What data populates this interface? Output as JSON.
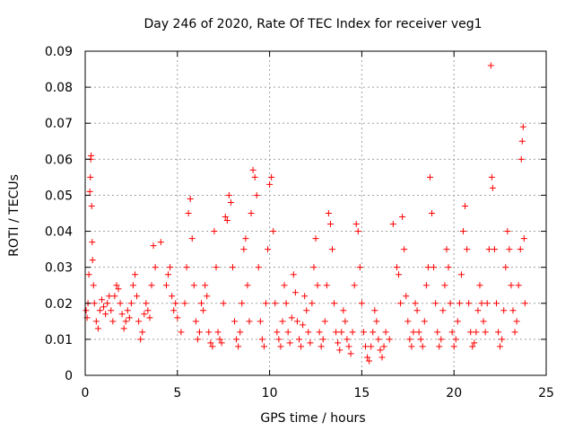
{
  "chart_data": {
    "type": "scatter",
    "title": "Day 246 of 2020, Rate Of TEC Index for receiver veg1",
    "xlabel": "GPS time / hours",
    "ylabel": "ROTI / TECUs",
    "xlim": [
      0,
      25
    ],
    "ylim": [
      0,
      0.09
    ],
    "xticks": [
      0,
      5,
      10,
      15,
      20,
      25
    ],
    "xtick_labels": [
      "0",
      "5",
      "10",
      "15",
      "20",
      "25"
    ],
    "yticks": [
      0,
      0.01,
      0.02,
      0.03,
      0.04,
      0.05,
      0.06,
      0.07,
      0.08,
      0.09
    ],
    "ytick_labels": [
      "0",
      "0.01",
      "0.02",
      "0.03",
      "0.04",
      "0.05",
      "0.06",
      "0.07",
      "0.08",
      "0.09"
    ],
    "grid": true,
    "marker": "+",
    "color": "#ff0000",
    "series": [
      {
        "name": "ROTI",
        "points": [
          [
            0.05,
            0.018
          ],
          [
            0.1,
            0.016
          ],
          [
            0.15,
            0.02
          ],
          [
            0.2,
            0.028
          ],
          [
            0.25,
            0.051
          ],
          [
            0.28,
            0.055
          ],
          [
            0.3,
            0.06
          ],
          [
            0.32,
            0.061
          ],
          [
            0.35,
            0.047
          ],
          [
            0.38,
            0.037
          ],
          [
            0.4,
            0.032
          ],
          [
            0.45,
            0.025
          ],
          [
            0.5,
            0.02
          ],
          [
            0.6,
            0.015
          ],
          [
            0.7,
            0.013
          ],
          [
            0.8,
            0.018
          ],
          [
            0.9,
            0.021
          ],
          [
            1.0,
            0.019
          ],
          [
            1.1,
            0.017
          ],
          [
            1.2,
            0.02
          ],
          [
            1.3,
            0.022
          ],
          [
            1.4,
            0.018
          ],
          [
            1.5,
            0.015
          ],
          [
            1.6,
            0.022
          ],
          [
            1.7,
            0.025
          ],
          [
            1.8,
            0.024
          ],
          [
            1.9,
            0.02
          ],
          [
            2.0,
            0.017
          ],
          [
            2.1,
            0.013
          ],
          [
            2.2,
            0.015
          ],
          [
            2.3,
            0.018
          ],
          [
            2.4,
            0.016
          ],
          [
            2.5,
            0.02
          ],
          [
            2.6,
            0.025
          ],
          [
            2.7,
            0.028
          ],
          [
            2.8,
            0.022
          ],
          [
            2.9,
            0.015
          ],
          [
            3.0,
            0.01
          ],
          [
            3.1,
            0.012
          ],
          [
            3.2,
            0.017
          ],
          [
            3.3,
            0.02
          ],
          [
            3.4,
            0.018
          ],
          [
            3.5,
            0.016
          ],
          [
            3.6,
            0.025
          ],
          [
            3.7,
            0.036
          ],
          [
            3.8,
            0.03
          ],
          [
            4.1,
            0.037
          ],
          [
            4.4,
            0.025
          ],
          [
            4.5,
            0.028
          ],
          [
            4.6,
            0.03
          ],
          [
            4.7,
            0.022
          ],
          [
            4.8,
            0.018
          ],
          [
            4.9,
            0.02
          ],
          [
            5.0,
            0.016
          ],
          [
            5.2,
            0.012
          ],
          [
            5.4,
            0.02
          ],
          [
            5.5,
            0.03
          ],
          [
            5.6,
            0.045
          ],
          [
            5.7,
            0.049
          ],
          [
            5.8,
            0.038
          ],
          [
            5.9,
            0.025
          ],
          [
            6.0,
            0.015
          ],
          [
            6.1,
            0.01
          ],
          [
            6.2,
            0.012
          ],
          [
            6.3,
            0.02
          ],
          [
            6.4,
            0.018
          ],
          [
            6.5,
            0.025
          ],
          [
            6.6,
            0.022
          ],
          [
            6.7,
            0.012
          ],
          [
            6.8,
            0.009
          ],
          [
            6.9,
            0.008
          ],
          [
            7.0,
            0.04
          ],
          [
            7.1,
            0.03
          ],
          [
            7.2,
            0.012
          ],
          [
            7.3,
            0.01
          ],
          [
            7.4,
            0.009
          ],
          [
            7.5,
            0.02
          ],
          [
            7.6,
            0.044
          ],
          [
            7.7,
            0.043
          ],
          [
            7.8,
            0.05
          ],
          [
            7.9,
            0.048
          ],
          [
            8.0,
            0.03
          ],
          [
            8.1,
            0.015
          ],
          [
            8.2,
            0.01
          ],
          [
            8.3,
            0.008
          ],
          [
            8.4,
            0.012
          ],
          [
            8.5,
            0.02
          ],
          [
            8.6,
            0.035
          ],
          [
            8.7,
            0.038
          ],
          [
            8.8,
            0.025
          ],
          [
            8.9,
            0.015
          ],
          [
            9.0,
            0.045
          ],
          [
            9.1,
            0.057
          ],
          [
            9.2,
            0.055
          ],
          [
            9.3,
            0.05
          ],
          [
            9.4,
            0.03
          ],
          [
            9.5,
            0.015
          ],
          [
            9.6,
            0.01
          ],
          [
            9.7,
            0.008
          ],
          [
            9.8,
            0.02
          ],
          [
            9.9,
            0.035
          ],
          [
            10.0,
            0.053
          ],
          [
            10.1,
            0.055
          ],
          [
            10.2,
            0.04
          ],
          [
            10.3,
            0.02
          ],
          [
            10.4,
            0.012
          ],
          [
            10.5,
            0.01
          ],
          [
            10.6,
            0.008
          ],
          [
            10.7,
            0.015
          ],
          [
            10.8,
            0.025
          ],
          [
            10.9,
            0.02
          ],
          [
            11.0,
            0.012
          ],
          [
            11.1,
            0.009
          ],
          [
            11.2,
            0.016
          ],
          [
            11.3,
            0.028
          ],
          [
            11.4,
            0.023
          ],
          [
            11.5,
            0.015
          ],
          [
            11.6,
            0.01
          ],
          [
            11.7,
            0.008
          ],
          [
            11.8,
            0.014
          ],
          [
            11.9,
            0.022
          ],
          [
            12.0,
            0.018
          ],
          [
            12.1,
            0.012
          ],
          [
            12.2,
            0.009
          ],
          [
            12.3,
            0.02
          ],
          [
            12.4,
            0.03
          ],
          [
            12.5,
            0.038
          ],
          [
            12.6,
            0.025
          ],
          [
            12.7,
            0.012
          ],
          [
            12.8,
            0.008
          ],
          [
            12.9,
            0.01
          ],
          [
            13.0,
            0.015
          ],
          [
            13.1,
            0.025
          ],
          [
            13.2,
            0.045
          ],
          [
            13.3,
            0.042
          ],
          [
            13.4,
            0.035
          ],
          [
            13.5,
            0.02
          ],
          [
            13.6,
            0.012
          ],
          [
            13.7,
            0.009
          ],
          [
            13.8,
            0.007
          ],
          [
            13.9,
            0.012
          ],
          [
            14.0,
            0.018
          ],
          [
            14.1,
            0.015
          ],
          [
            14.2,
            0.01
          ],
          [
            14.3,
            0.008
          ],
          [
            14.4,
            0.006
          ],
          [
            14.5,
            0.012
          ],
          [
            14.6,
            0.025
          ],
          [
            14.7,
            0.042
          ],
          [
            14.8,
            0.04
          ],
          [
            14.9,
            0.03
          ],
          [
            15.0,
            0.02
          ],
          [
            15.1,
            0.012
          ],
          [
            15.2,
            0.008
          ],
          [
            15.3,
            0.005
          ],
          [
            15.4,
            0.004
          ],
          [
            15.5,
            0.008
          ],
          [
            15.6,
            0.012
          ],
          [
            15.7,
            0.018
          ],
          [
            15.8,
            0.015
          ],
          [
            15.9,
            0.01
          ],
          [
            16.0,
            0.007
          ],
          [
            16.1,
            0.005
          ],
          [
            16.2,
            0.008
          ],
          [
            16.3,
            0.012
          ],
          [
            16.5,
            0.01
          ],
          [
            16.7,
            0.042
          ],
          [
            16.9,
            0.03
          ],
          [
            17.0,
            0.028
          ],
          [
            17.1,
            0.02
          ],
          [
            17.2,
            0.044
          ],
          [
            17.3,
            0.035
          ],
          [
            17.4,
            0.022
          ],
          [
            17.5,
            0.015
          ],
          [
            17.6,
            0.01
          ],
          [
            17.7,
            0.008
          ],
          [
            17.8,
            0.012
          ],
          [
            17.9,
            0.02
          ],
          [
            18.0,
            0.018
          ],
          [
            18.1,
            0.012
          ],
          [
            18.2,
            0.01
          ],
          [
            18.3,
            0.008
          ],
          [
            18.4,
            0.015
          ],
          [
            18.5,
            0.025
          ],
          [
            18.6,
            0.03
          ],
          [
            18.7,
            0.055
          ],
          [
            18.8,
            0.045
          ],
          [
            18.9,
            0.03
          ],
          [
            19.0,
            0.02
          ],
          [
            19.1,
            0.012
          ],
          [
            19.2,
            0.008
          ],
          [
            19.3,
            0.01
          ],
          [
            19.4,
            0.018
          ],
          [
            19.5,
            0.025
          ],
          [
            19.6,
            0.035
          ],
          [
            19.7,
            0.03
          ],
          [
            19.8,
            0.02
          ],
          [
            19.9,
            0.012
          ],
          [
            20.0,
            0.008
          ],
          [
            20.1,
            0.01
          ],
          [
            20.2,
            0.015
          ],
          [
            20.3,
            0.02
          ],
          [
            20.4,
            0.028
          ],
          [
            20.5,
            0.04
          ],
          [
            20.6,
            0.047
          ],
          [
            20.7,
            0.035
          ],
          [
            20.8,
            0.02
          ],
          [
            20.9,
            0.012
          ],
          [
            21.0,
            0.008
          ],
          [
            21.1,
            0.009
          ],
          [
            21.2,
            0.012
          ],
          [
            21.3,
            0.018
          ],
          [
            21.4,
            0.025
          ],
          [
            21.5,
            0.02
          ],
          [
            21.6,
            0.015
          ],
          [
            21.7,
            0.012
          ],
          [
            21.8,
            0.02
          ],
          [
            21.9,
            0.035
          ],
          [
            22.0,
            0.086
          ],
          [
            22.05,
            0.055
          ],
          [
            22.1,
            0.052
          ],
          [
            22.2,
            0.035
          ],
          [
            22.3,
            0.02
          ],
          [
            22.4,
            0.012
          ],
          [
            22.5,
            0.008
          ],
          [
            22.6,
            0.01
          ],
          [
            22.7,
            0.018
          ],
          [
            22.8,
            0.03
          ],
          [
            22.9,
            0.04
          ],
          [
            23.0,
            0.035
          ],
          [
            23.1,
            0.025
          ],
          [
            23.2,
            0.018
          ],
          [
            23.3,
            0.012
          ],
          [
            23.4,
            0.015
          ],
          [
            23.5,
            0.025
          ],
          [
            23.6,
            0.035
          ],
          [
            23.65,
            0.06
          ],
          [
            23.7,
            0.065
          ],
          [
            23.75,
            0.069
          ],
          [
            23.8,
            0.038
          ],
          [
            23.85,
            0.02
          ]
        ]
      }
    ]
  }
}
